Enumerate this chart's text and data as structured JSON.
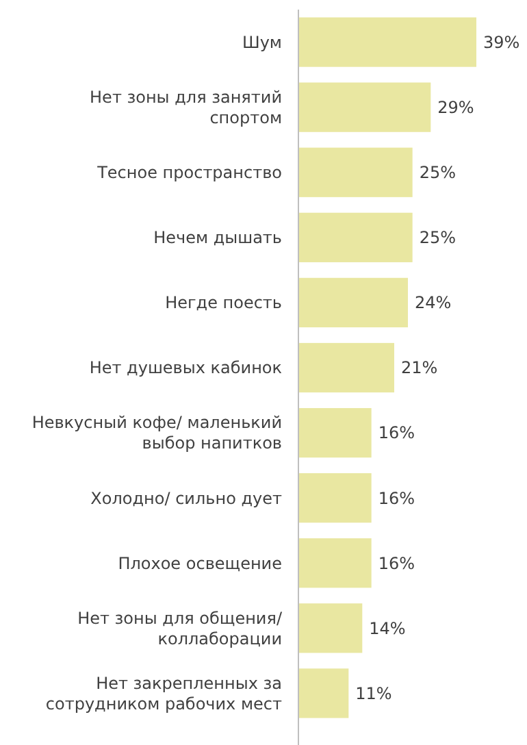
{
  "chart_data": {
    "type": "bar",
    "orientation": "horizontal",
    "data_labels": true,
    "color": "#e9e7a1",
    "categories": [
      "Шум",
      "Нет зоны для занятий спортом",
      "Тесное пространство",
      "Нечем дышать",
      "Негде поесть",
      "Нет душевых кабинок",
      "Невкусный кофе/ маленький выбор напитков",
      "Холодно/ сильно дует",
      "Плохое освещение",
      "Нет зоны для общения/ коллаборации",
      "Нет закрепленных за сотрудником рабочих мест"
    ],
    "values": [
      39,
      29,
      25,
      25,
      24,
      21,
      16,
      16,
      16,
      14,
      11
    ],
    "value_labels": [
      "39%",
      "29%",
      "25%",
      "25%",
      "24%",
      "21%",
      "16%",
      "16%",
      "16%",
      "14%",
      "11%"
    ]
  }
}
